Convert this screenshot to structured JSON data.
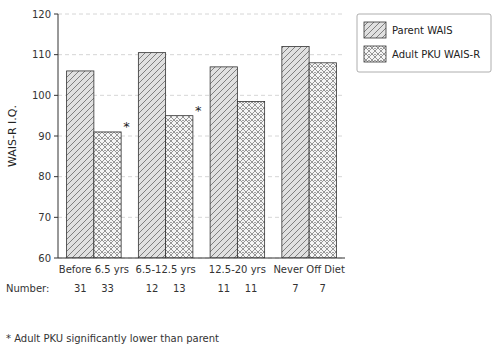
{
  "chart_data": {
    "type": "bar",
    "categories": [
      "Before 6.5 yrs",
      "6.5-12.5 yrs",
      "12.5-20 yrs",
      "Never Off Diet"
    ],
    "series": [
      {
        "name": "Parent WAIS",
        "color": "#e0e0e0",
        "values": [
          106,
          110.5,
          107,
          112
        ],
        "number": [
          31,
          12,
          11,
          7
        ]
      },
      {
        "name": "Adult PKU WAIS-R",
        "color": "#f5f5f5",
        "values": [
          91,
          95,
          98.5,
          108
        ],
        "number": [
          33,
          13,
          11,
          7
        ]
      }
    ],
    "ylabel": "WAIS-R I.Q.",
    "ylim": [
      60,
      120
    ],
    "yticks": [
      60,
      70,
      80,
      90,
      100,
      110,
      120
    ],
    "grid": true,
    "legend": "right",
    "annotations": [
      {
        "text": "*",
        "category": "Before 6.5 yrs",
        "series": "Adult PKU WAIS-R"
      },
      {
        "text": "*",
        "category": "6.5-12.5 yrs",
        "series": "Adult PKU WAIS-R"
      }
    ],
    "number_label": "Number:",
    "footnote": "* Adult PKU significantly lower than parent"
  }
}
